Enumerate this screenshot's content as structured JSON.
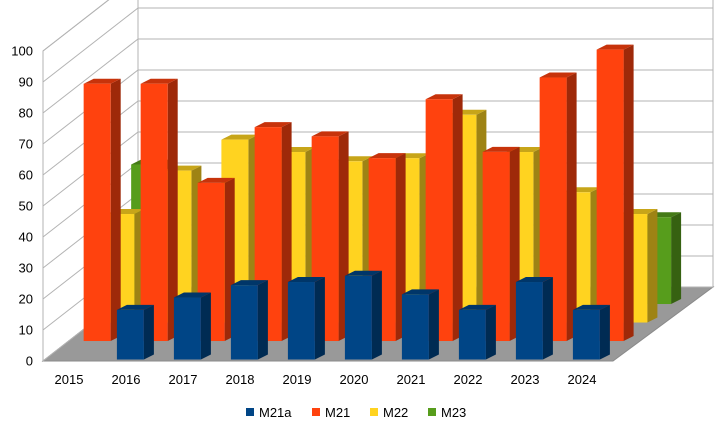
{
  "chart_data": {
    "type": "bar",
    "title": "",
    "xlabel": "",
    "ylabel": "",
    "ylim": [
      0,
      100
    ],
    "yticks": [
      "0",
      "10",
      "20",
      "30",
      "40",
      "50",
      "60",
      "70",
      "80",
      "90",
      "100"
    ],
    "categories": [
      "2015",
      "2016",
      "2017",
      "2018",
      "2019",
      "2020",
      "2021",
      "2022",
      "2023",
      "2024"
    ],
    "series": [
      {
        "name": "M21a",
        "color": "#004586",
        "values": [
          null,
          16,
          20,
          24,
          25,
          27,
          21,
          16,
          25,
          16
        ]
      },
      {
        "name": "M21",
        "color": "#ff420e",
        "values": [
          83,
          83,
          51,
          69,
          66,
          59,
          78,
          61,
          85,
          94
        ]
      },
      {
        "name": "M22",
        "color": "#ffd320",
        "values": [
          35,
          49,
          59,
          55,
          52,
          53,
          67,
          55,
          42,
          35
        ]
      },
      {
        "name": "M23",
        "color": "#579d1c",
        "values": [
          45,
          null,
          null,
          null,
          null,
          null,
          null,
          null,
          null,
          28
        ]
      }
    ],
    "legend_position": "bottom",
    "grid": true,
    "style": "3d"
  }
}
